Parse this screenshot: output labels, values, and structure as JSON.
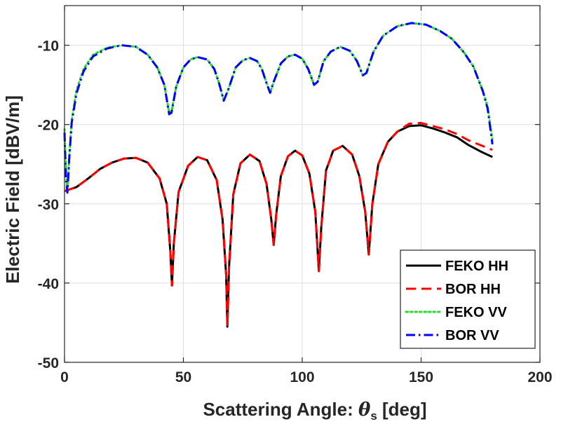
{
  "chart_data": {
    "type": "line",
    "xlabel": "Scattering Angle: ",
    "xlabel_symbol": "θ",
    "xlabel_subscript": "s",
    "xlabel_unit": " [deg]",
    "ylabel": "Electric Field [dBV/m]",
    "xlim": [
      0,
      200
    ],
    "ylim": [
      -50,
      -5
    ],
    "xticks": [
      0,
      50,
      100,
      150,
      200
    ],
    "yticks": [
      -50,
      -40,
      -30,
      -20,
      -10
    ],
    "xtick_labels": [
      "0",
      "50",
      "100",
      "150",
      "200"
    ],
    "ytick_labels": [
      "-50",
      "-40",
      "-30",
      "-20",
      "-10"
    ],
    "grid": true,
    "legend_position": "bottom-right",
    "series": [
      {
        "name": "FEKO HH",
        "color": "#000000",
        "dash": "solid",
        "points": [
          [
            0,
            -28.4
          ],
          [
            2,
            -28.2
          ],
          [
            5,
            -27.9
          ],
          [
            10,
            -26.8
          ],
          [
            15,
            -25.6
          ],
          [
            20,
            -24.8
          ],
          [
            25,
            -24.3
          ],
          [
            30,
            -24.2
          ],
          [
            35,
            -24.8
          ],
          [
            40,
            -26.8
          ],
          [
            43,
            -30
          ],
          [
            44.5,
            -36
          ],
          [
            45.2,
            -40.3
          ],
          [
            46,
            -35
          ],
          [
            48,
            -28.5
          ],
          [
            52,
            -25.2
          ],
          [
            56,
            -24.1
          ],
          [
            60,
            -24.5
          ],
          [
            64,
            -27
          ],
          [
            66.5,
            -32
          ],
          [
            68,
            -39
          ],
          [
            68.5,
            -45.5
          ],
          [
            69.2,
            -38
          ],
          [
            71,
            -28.8
          ],
          [
            74,
            -24.9
          ],
          [
            78,
            -23.8
          ],
          [
            82,
            -24.6
          ],
          [
            85,
            -27.5
          ],
          [
            87,
            -32
          ],
          [
            88,
            -35.2
          ],
          [
            89,
            -31.5
          ],
          [
            91,
            -26.5
          ],
          [
            94,
            -24
          ],
          [
            97,
            -23.3
          ],
          [
            100,
            -23.9
          ],
          [
            103,
            -26.2
          ],
          [
            105.5,
            -31
          ],
          [
            107,
            -38.5
          ],
          [
            108,
            -33
          ],
          [
            110,
            -25.8
          ],
          [
            113,
            -23.3
          ],
          [
            117,
            -22.7
          ],
          [
            121,
            -23.8
          ],
          [
            124,
            -26.5
          ],
          [
            126.5,
            -31
          ],
          [
            128,
            -36.4
          ],
          [
            129.5,
            -30
          ],
          [
            132,
            -25
          ],
          [
            136,
            -22.2
          ],
          [
            140,
            -20.9
          ],
          [
            145,
            -20.2
          ],
          [
            150,
            -20.1
          ],
          [
            155,
            -20.5
          ],
          [
            160,
            -21
          ],
          [
            165,
            -21.6
          ],
          [
            170,
            -22.6
          ],
          [
            175,
            -23.4
          ],
          [
            180,
            -24.1
          ]
        ]
      },
      {
        "name": "BOR HH",
        "color": "#ff0000",
        "dash": "dashed",
        "points": [
          [
            0,
            -28.4
          ],
          [
            2,
            -28.2
          ],
          [
            5,
            -27.9
          ],
          [
            10,
            -26.8
          ],
          [
            15,
            -25.6
          ],
          [
            20,
            -24.8
          ],
          [
            25,
            -24.3
          ],
          [
            30,
            -24.2
          ],
          [
            35,
            -24.8
          ],
          [
            40,
            -26.8
          ],
          [
            43,
            -30
          ],
          [
            44.5,
            -36
          ],
          [
            45.2,
            -40.3
          ],
          [
            46,
            -35
          ],
          [
            48,
            -28.5
          ],
          [
            52,
            -25.2
          ],
          [
            56,
            -24.1
          ],
          [
            60,
            -24.5
          ],
          [
            64,
            -27
          ],
          [
            66.5,
            -32
          ],
          [
            68,
            -39
          ],
          [
            68.5,
            -45.5
          ],
          [
            69.2,
            -38
          ],
          [
            71,
            -28.8
          ],
          [
            74,
            -24.9
          ],
          [
            78,
            -23.8
          ],
          [
            82,
            -24.6
          ],
          [
            85,
            -27.5
          ],
          [
            87,
            -32
          ],
          [
            88,
            -35.2
          ],
          [
            89,
            -31.5
          ],
          [
            91,
            -26.5
          ],
          [
            94,
            -24
          ],
          [
            97,
            -23.3
          ],
          [
            100,
            -23.9
          ],
          [
            103,
            -26.2
          ],
          [
            105.5,
            -31
          ],
          [
            107,
            -38.5
          ],
          [
            108,
            -33
          ],
          [
            110,
            -25.8
          ],
          [
            113,
            -23.3
          ],
          [
            117,
            -22.7
          ],
          [
            121,
            -23.8
          ],
          [
            124,
            -26.5
          ],
          [
            126.5,
            -31
          ],
          [
            128,
            -36.4
          ],
          [
            129.5,
            -30
          ],
          [
            132,
            -25
          ],
          [
            136,
            -22.2
          ],
          [
            140,
            -20.9
          ],
          [
            145,
            -19.9
          ],
          [
            150,
            -19.8
          ],
          [
            155,
            -20.2
          ],
          [
            160,
            -20.6
          ],
          [
            165,
            -21.2
          ],
          [
            170,
            -22
          ],
          [
            175,
            -22.6
          ],
          [
            180,
            -23.2
          ]
        ]
      },
      {
        "name": "FEKO VV",
        "color": "#22dd22",
        "dash": "dotted",
        "points": [
          [
            0,
            -20.6
          ],
          [
            0.5,
            -25
          ],
          [
            1.2,
            -28.6
          ],
          [
            2,
            -24
          ],
          [
            3,
            -19.5
          ],
          [
            5,
            -15.7
          ],
          [
            8,
            -13
          ],
          [
            12,
            -11.2
          ],
          [
            18,
            -10.3
          ],
          [
            24,
            -10
          ],
          [
            30,
            -10.2
          ],
          [
            35,
            -11.2
          ],
          [
            39,
            -12.8
          ],
          [
            42,
            -15
          ],
          [
            44,
            -18.5
          ],
          [
            45,
            -18.3
          ],
          [
            47,
            -15.2
          ],
          [
            50,
            -12.8
          ],
          [
            53,
            -11.8
          ],
          [
            56,
            -11.5
          ],
          [
            60,
            -11.8
          ],
          [
            63,
            -13
          ],
          [
            65,
            -14.8
          ],
          [
            67,
            -17
          ],
          [
            69,
            -15.5
          ],
          [
            72,
            -12.8
          ],
          [
            75,
            -11.9
          ],
          [
            78,
            -11.6
          ],
          [
            81,
            -12
          ],
          [
            83,
            -13
          ],
          [
            85,
            -14.8
          ],
          [
            86.5,
            -16
          ],
          [
            88,
            -14.6
          ],
          [
            91,
            -12.3
          ],
          [
            94,
            -11.4
          ],
          [
            97,
            -11.2
          ],
          [
            100,
            -11.7
          ],
          [
            102.5,
            -13
          ],
          [
            105,
            -15
          ],
          [
            106.5,
            -14.6
          ],
          [
            109,
            -12
          ],
          [
            112,
            -10.8
          ],
          [
            116,
            -10.2
          ],
          [
            120,
            -10.7
          ],
          [
            123,
            -12
          ],
          [
            125.5,
            -13.8
          ],
          [
            127,
            -13.5
          ],
          [
            130,
            -10.8
          ],
          [
            134,
            -8.8
          ],
          [
            140,
            -7.6
          ],
          [
            146,
            -7.2
          ],
          [
            152,
            -7.4
          ],
          [
            158,
            -8.2
          ],
          [
            163,
            -9.2
          ],
          [
            168,
            -10.9
          ],
          [
            172,
            -12.7
          ],
          [
            176,
            -15.8
          ],
          [
            178,
            -17.8
          ],
          [
            180,
            -22
          ]
        ]
      },
      {
        "name": "BOR VV",
        "color": "#0000ff",
        "dash": "dashdot",
        "points": [
          [
            0,
            -21
          ],
          [
            0.5,
            -26.5
          ],
          [
            1.2,
            -28.6
          ],
          [
            2,
            -24.2
          ],
          [
            3,
            -19.8
          ],
          [
            5,
            -16.1
          ],
          [
            8,
            -13.3
          ],
          [
            12,
            -11.4
          ],
          [
            18,
            -10.4
          ],
          [
            24,
            -10
          ],
          [
            30,
            -10.2
          ],
          [
            35,
            -11.2
          ],
          [
            39,
            -12.8
          ],
          [
            42,
            -15
          ],
          [
            44,
            -18.7
          ],
          [
            45,
            -18.5
          ],
          [
            47,
            -15.2
          ],
          [
            50,
            -12.8
          ],
          [
            53,
            -11.8
          ],
          [
            56,
            -11.5
          ],
          [
            60,
            -11.8
          ],
          [
            63,
            -13
          ],
          [
            65,
            -14.8
          ],
          [
            67,
            -17
          ],
          [
            69,
            -15.5
          ],
          [
            72,
            -12.8
          ],
          [
            75,
            -11.9
          ],
          [
            78,
            -11.6
          ],
          [
            81,
            -12
          ],
          [
            83,
            -13
          ],
          [
            85,
            -14.8
          ],
          [
            86.5,
            -16
          ],
          [
            88,
            -14.6
          ],
          [
            91,
            -12.3
          ],
          [
            94,
            -11.4
          ],
          [
            97,
            -11.2
          ],
          [
            100,
            -11.7
          ],
          [
            102.5,
            -13
          ],
          [
            105,
            -15
          ],
          [
            106.5,
            -14.6
          ],
          [
            109,
            -12
          ],
          [
            112,
            -10.8
          ],
          [
            116,
            -10.2
          ],
          [
            120,
            -10.7
          ],
          [
            123,
            -12
          ],
          [
            125.5,
            -13.8
          ],
          [
            127,
            -13.5
          ],
          [
            130,
            -10.8
          ],
          [
            134,
            -8.8
          ],
          [
            140,
            -7.6
          ],
          [
            146,
            -7.2
          ],
          [
            152,
            -7.4
          ],
          [
            158,
            -8.2
          ],
          [
            163,
            -9.2
          ],
          [
            168,
            -10.9
          ],
          [
            172,
            -12.7
          ],
          [
            176,
            -15.8
          ],
          [
            178,
            -18
          ],
          [
            180,
            -22.5
          ]
        ]
      }
    ]
  }
}
